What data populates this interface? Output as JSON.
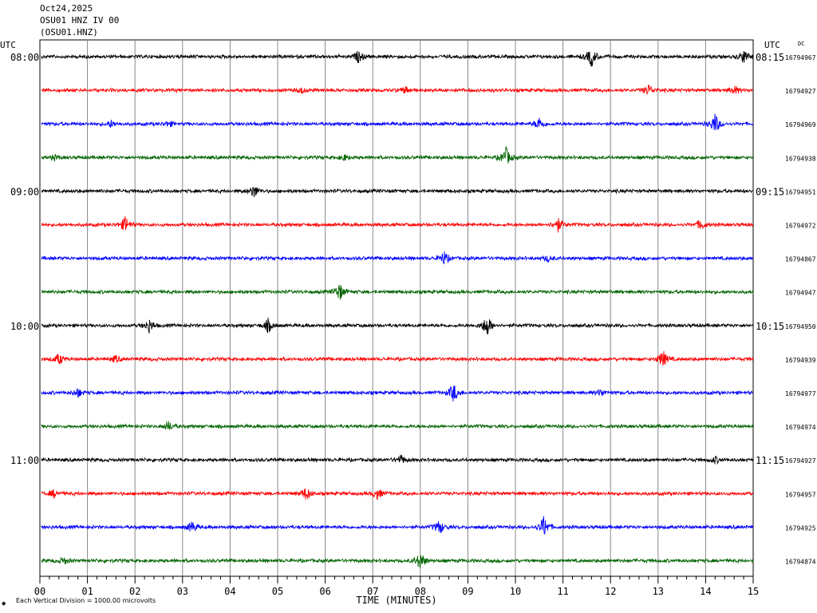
{
  "header": {
    "date": "Oct24,2025",
    "station": "OSU01 HNZ IV 00",
    "channel": "(OSU01.HNZ)"
  },
  "chart_data": {
    "type": "line",
    "title": "Oct24,2025",
    "xlabel": "TIME (MINUTES)",
    "ylabel": "UTC",
    "xlim": [
      0,
      15
    ],
    "x_ticks": [
      "00",
      "01",
      "02",
      "03",
      "04",
      "05",
      "06",
      "07",
      "08",
      "09",
      "10",
      "11",
      "12",
      "13",
      "14",
      "15"
    ],
    "left_axis_label": "UTC",
    "right_axis_label": "UTC",
    "dc_label": "DC",
    "left_time_labels": [
      {
        "row": 0,
        "label": "08:00"
      },
      {
        "row": 4,
        "label": "09:00"
      },
      {
        "row": 8,
        "label": "10:00"
      },
      {
        "row": 12,
        "label": "11:00"
      }
    ],
    "right_time_labels": [
      {
        "row": 0,
        "label": "08:15"
      },
      {
        "row": 4,
        "label": "09:15"
      },
      {
        "row": 8,
        "label": "10:15"
      },
      {
        "row": 12,
        "label": "11:15"
      }
    ],
    "row_colors": [
      "#000000",
      "#ff0000",
      "#0000ff",
      "#006400"
    ],
    "rows": [
      {
        "dc": "16794967",
        "events": [
          {
            "t": 6.7,
            "a": 0.5
          },
          {
            "t": 11.6,
            "a": 0.9
          },
          {
            "t": 14.8,
            "a": 0.6
          }
        ]
      },
      {
        "dc": "16794927",
        "events": [
          {
            "t": 5.5,
            "a": 0.25
          },
          {
            "t": 7.7,
            "a": 0.3
          },
          {
            "t": 12.8,
            "a": 0.5
          },
          {
            "t": 14.6,
            "a": 0.4
          }
        ]
      },
      {
        "dc": "16794969",
        "events": [
          {
            "t": 1.5,
            "a": 0.3
          },
          {
            "t": 2.7,
            "a": 0.25
          },
          {
            "t": 10.5,
            "a": 0.55
          },
          {
            "t": 14.2,
            "a": 0.95
          }
        ]
      },
      {
        "dc": "16794938",
        "events": [
          {
            "t": 0.3,
            "a": 0.2
          },
          {
            "t": 6.4,
            "a": 0.25
          },
          {
            "t": 9.8,
            "a": 0.9
          }
        ]
      },
      {
        "dc": "16794951",
        "events": [
          {
            "t": 4.5,
            "a": 0.6
          }
        ]
      },
      {
        "dc": "16794972",
        "events": [
          {
            "t": 1.8,
            "a": 0.7
          },
          {
            "t": 10.9,
            "a": 0.6
          },
          {
            "t": 13.9,
            "a": 0.45
          }
        ]
      },
      {
        "dc": "16794867",
        "events": [
          {
            "t": 8.5,
            "a": 0.6
          },
          {
            "t": 10.7,
            "a": 0.25
          }
        ]
      },
      {
        "dc": "16794947",
        "events": [
          {
            "t": 6.3,
            "a": 0.8
          }
        ]
      },
      {
        "dc": "16794950",
        "events": [
          {
            "t": 2.3,
            "a": 0.6
          },
          {
            "t": 4.8,
            "a": 0.6
          },
          {
            "t": 9.4,
            "a": 1.0
          }
        ]
      },
      {
        "dc": "16794939",
        "events": [
          {
            "t": 0.4,
            "a": 0.5
          },
          {
            "t": 1.6,
            "a": 0.3
          },
          {
            "t": 13.1,
            "a": 0.8
          }
        ]
      },
      {
        "dc": "16794977",
        "events": [
          {
            "t": 0.8,
            "a": 0.4
          },
          {
            "t": 8.7,
            "a": 0.85
          },
          {
            "t": 11.8,
            "a": 0.3
          }
        ]
      },
      {
        "dc": "16794974",
        "events": [
          {
            "t": 2.7,
            "a": 0.45
          }
        ]
      },
      {
        "dc": "16794927",
        "events": [
          {
            "t": 7.6,
            "a": 0.4
          },
          {
            "t": 14.2,
            "a": 0.3
          }
        ]
      },
      {
        "dc": "16794957",
        "events": [
          {
            "t": 0.3,
            "a": 0.35
          },
          {
            "t": 5.6,
            "a": 0.6
          },
          {
            "t": 7.1,
            "a": 0.5
          }
        ]
      },
      {
        "dc": "16794925",
        "events": [
          {
            "t": 3.2,
            "a": 0.5
          },
          {
            "t": 8.4,
            "a": 0.65
          },
          {
            "t": 10.6,
            "a": 1.0
          }
        ]
      },
      {
        "dc": "16794874",
        "events": [
          {
            "t": 0.5,
            "a": 0.3
          },
          {
            "t": 8.0,
            "a": 0.8
          }
        ]
      }
    ]
  },
  "footer": {
    "scale_note": "Each Vertical Division = 1000.00 microvolts",
    "logo_mark": "◆"
  }
}
